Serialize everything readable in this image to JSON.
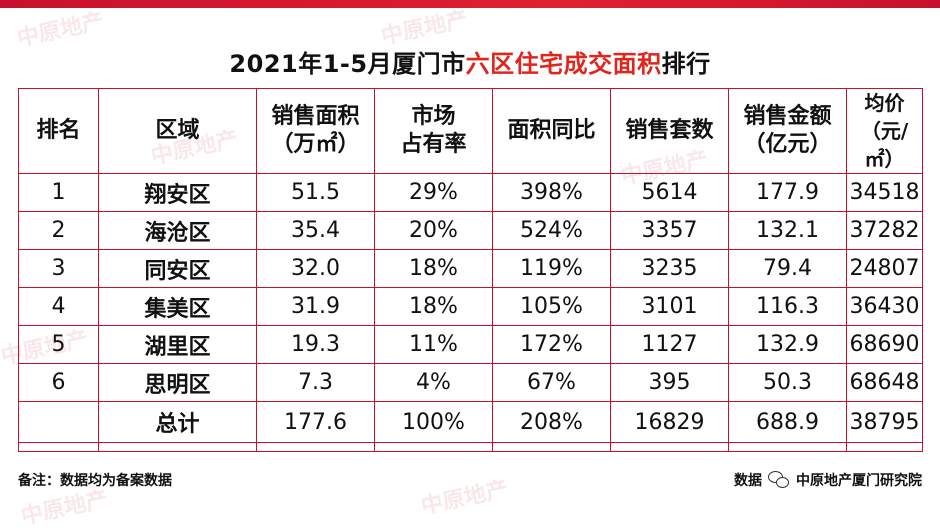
{
  "title": {
    "prefix": "2021年1-5月厦门市",
    "highlight": "六区住宅成交面积",
    "suffix": "排行",
    "highlight_color": "#e1251b"
  },
  "table": {
    "headers": {
      "rank": "排名",
      "region": "区域",
      "area_line1": "销售面积",
      "area_line2": "（万㎡）",
      "share_line1": "市场",
      "share_line2": "占有率",
      "yoy": "面积同比",
      "units": "销售套数",
      "amount_line1": "销售金额",
      "amount_line2": "（亿元）",
      "price_line1": "均价",
      "price_line2": "（元/㎡）"
    },
    "rows": [
      {
        "rank": "1",
        "region": "翔安区",
        "area": "51.5",
        "share": "29%",
        "yoy": "398%",
        "units": "5614",
        "amount": "177.9",
        "price": "34518"
      },
      {
        "rank": "2",
        "region": "海沧区",
        "area": "35.4",
        "share": "20%",
        "yoy": "524%",
        "units": "3357",
        "amount": "132.1",
        "price": "37282"
      },
      {
        "rank": "3",
        "region": "同安区",
        "area": "32.0",
        "share": "18%",
        "yoy": "119%",
        "units": "3235",
        "amount": "79.4",
        "price": "24807"
      },
      {
        "rank": "4",
        "region": "集美区",
        "area": "31.9",
        "share": "18%",
        "yoy": "105%",
        "units": "3101",
        "amount": "116.3",
        "price": "36430"
      },
      {
        "rank": "5",
        "region": "湖里区",
        "area": "19.3",
        "share": "11%",
        "yoy": "172%",
        "units": "1127",
        "amount": "132.9",
        "price": "68690"
      },
      {
        "rank": "6",
        "region": "思明区",
        "area": "7.3",
        "share": "4%",
        "yoy": "67%",
        "units": "395",
        "amount": "50.3",
        "price": "68648"
      }
    ],
    "total": {
      "rank": "",
      "region": "总计",
      "area": "177.6",
      "share": "100%",
      "yoy": "208%",
      "units": "16829",
      "amount": "688.9",
      "price": "38795"
    }
  },
  "footer": {
    "note": "备注：数据均为备案数据",
    "source_label": "数据",
    "source_name": "中原地产厦门研究院"
  },
  "watermark": {
    "text": "中原地产"
  },
  "colors": {
    "accent": "#c8102e"
  }
}
